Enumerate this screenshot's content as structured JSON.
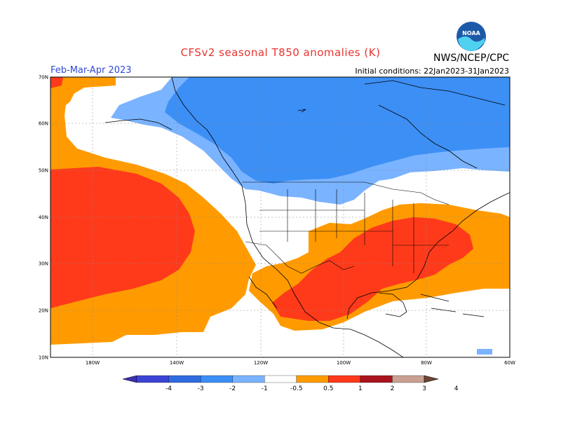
{
  "header": {
    "title": "CFSv2 seasonal T850 anomalies (K)",
    "period": "Feb-Mar-Apr 2023",
    "initial_conditions": "Initial conditions: 22Jan2023-31Jan2023",
    "agency": "NWS/NCEP/CPC",
    "logo_text": "NOAA"
  },
  "map": {
    "lat_labels": [
      "70N",
      "60N",
      "50N",
      "40N",
      "30N",
      "20N",
      "10N"
    ],
    "lon_labels": [
      "180W",
      "140W",
      "120W",
      "100W",
      "80W",
      "60W"
    ],
    "lat_range": [
      10,
      70
    ],
    "lon_range": [
      -190,
      -60
    ],
    "colors": {
      "ocean_land_neutral": "#ffffff",
      "orange": "#ff9b00",
      "red": "#ff3a1a",
      "blue_light": "#7ab3ff",
      "blue": "#3c8ff5",
      "coast": "#000000"
    }
  },
  "colorbar": {
    "labels": [
      "-4",
      "-3",
      "-2",
      "-1",
      "-0.5",
      "0.5",
      "1",
      "2",
      "3",
      "4"
    ],
    "colors": [
      "#3b2fb0",
      "#3b44d4",
      "#2f6be0",
      "#3c8ff5",
      "#7ab3ff",
      "#ffffff",
      "#ff9b00",
      "#ff3a1a",
      "#a8141e",
      "#c9a093",
      "#6d4534"
    ]
  }
}
